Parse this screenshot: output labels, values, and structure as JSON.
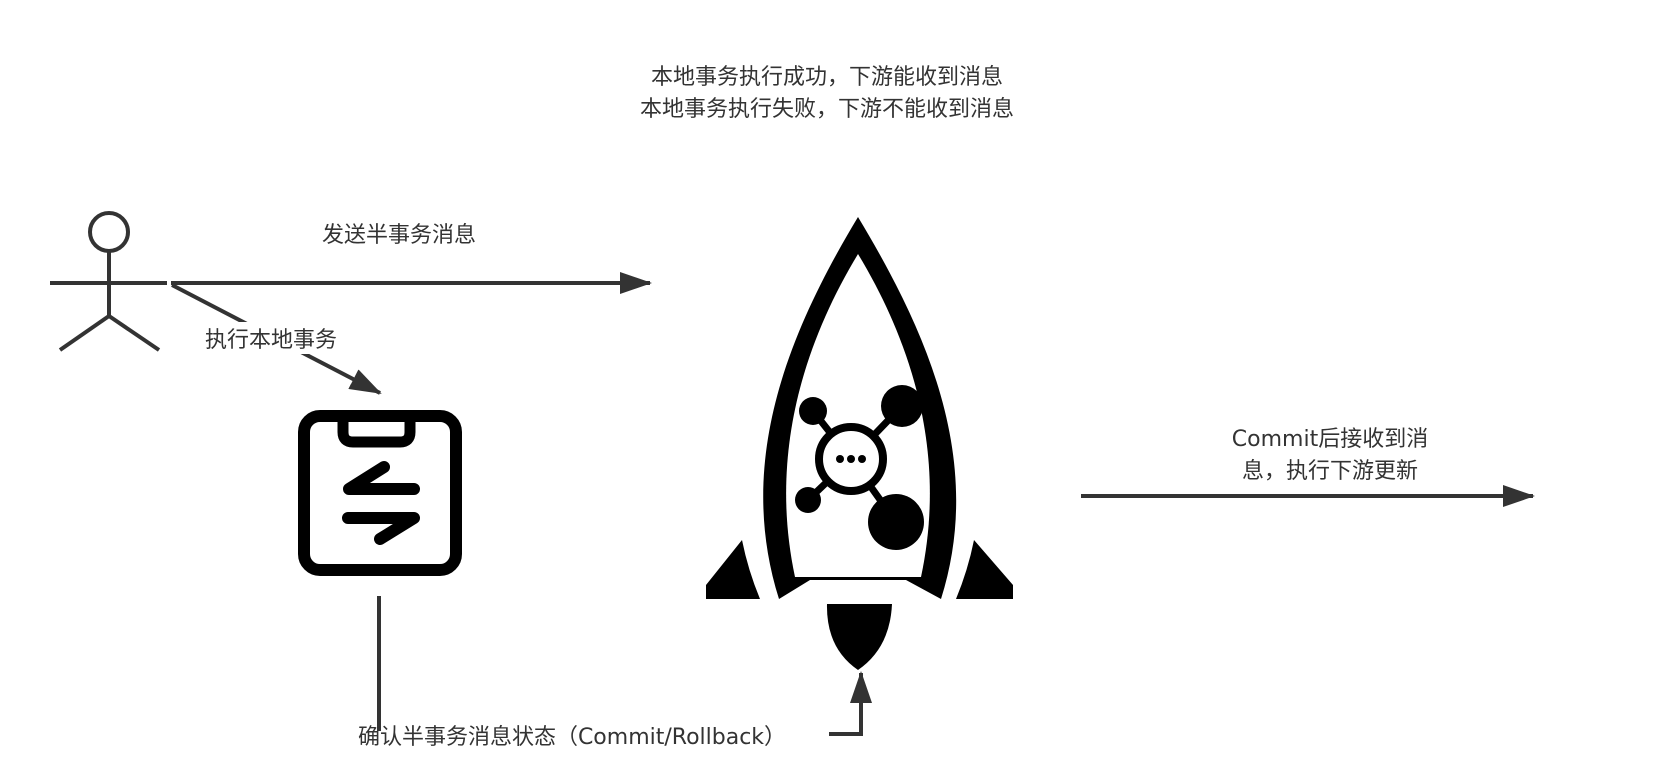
{
  "diagram": {
    "title_lines": [
      "本地事务执行成功，下游能收到消息",
      "本地事务执行失败，下游不能收到消息"
    ],
    "actor": {
      "icon": "stick-figure-icon"
    },
    "edges": {
      "send_half_message": "发送半事务消息",
      "execute_local_transaction": "执行本地事务",
      "confirm_status": "确认半事务消息状态（Commit/Rollback）",
      "downstream_lines": [
        "Commit后接收到消",
        "息，执行下游更新"
      ]
    },
    "nodes": {
      "local_transaction": {
        "icon": "clipboard-transfer-icon"
      },
      "message_queue": {
        "icon": "rocket-icon"
      }
    },
    "colors": {
      "line": "#333333",
      "icon": "#000000"
    }
  }
}
